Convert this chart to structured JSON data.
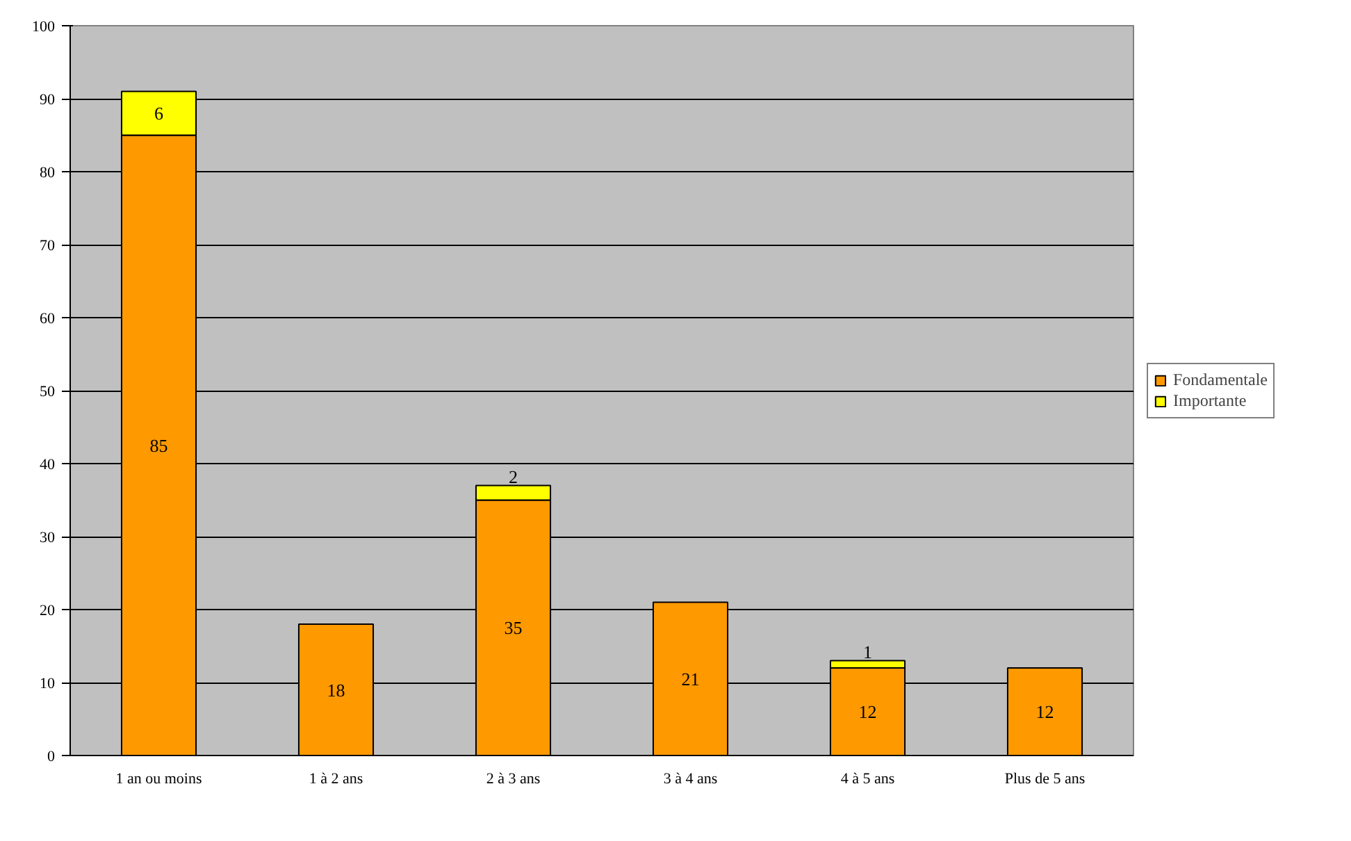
{
  "chart_data": {
    "type": "bar",
    "stacked": true,
    "categories": [
      "1 an ou moins",
      "1 à 2 ans",
      "2 à 3 ans",
      "3 à 4 ans",
      "4 à 5 ans",
      "Plus de 5 ans"
    ],
    "series": [
      {
        "name": "Fondamentale",
        "color": "#ff9900",
        "values": [
          85,
          18,
          35,
          21,
          12,
          12
        ]
      },
      {
        "name": "Importante",
        "color": "#ffff00",
        "values": [
          6,
          null,
          2,
          null,
          1,
          null
        ]
      }
    ],
    "ylim": [
      0,
      100
    ],
    "yticks": [
      0,
      10,
      20,
      30,
      40,
      50,
      60,
      70,
      80,
      90,
      100
    ],
    "grid": "y",
    "legend": "right",
    "data_labels": true
  }
}
